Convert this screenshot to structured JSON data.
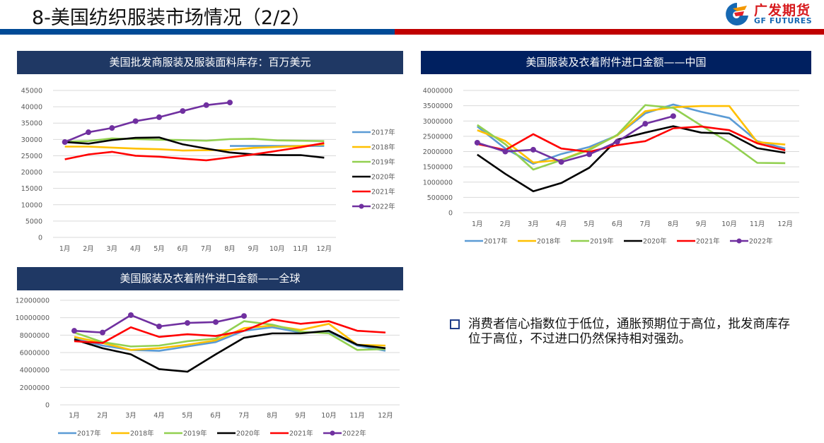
{
  "page": {
    "title": "8-美国纺织服装市场情况（2/2）",
    "logo_cn": "广发期货",
    "logo_en": "GF FUTURES"
  },
  "bullet": {
    "text": "消费者信心指数位于低位，通胀预期位于高位，批发商库存位于高位，不过进口仍然保持相对强劲。"
  },
  "colors": {
    "header_blue": "#004a96",
    "header_red": "#c00000",
    "panel_navy": "#1f3864",
    "panel_navy2": "#002060"
  },
  "chart_data": [
    {
      "id": "wholesale-inventory",
      "type": "line",
      "title": "美国批发商服装及服装面料库存：百万美元",
      "xlabel": "",
      "ylabel": "",
      "categories": [
        "1月",
        "2月",
        "3月",
        "4月",
        "5月",
        "6月",
        "7月",
        "8月",
        "9月",
        "10月",
        "11月",
        "12月"
      ],
      "ylim": [
        0,
        45000
      ],
      "yticks": [
        0,
        5000,
        10000,
        15000,
        20000,
        25000,
        30000,
        35000,
        40000,
        45000
      ],
      "ytick_labels": [
        "0",
        "5000",
        "10000",
        "15000",
        "20000",
        "25000",
        "30000",
        "35000",
        "40000",
        "45000"
      ],
      "grid": true,
      "legend": "right",
      "series": [
        {
          "name": "2017年",
          "color": "#5b9bd5",
          "values": [
            null,
            null,
            null,
            null,
            null,
            null,
            null,
            28000,
            28000,
            28000,
            28000,
            28000
          ]
        },
        {
          "name": "2018年",
          "color": "#ffc000",
          "values": [
            27800,
            27800,
            27500,
            27200,
            27000,
            26600,
            26700,
            26800,
            27400,
            27700,
            28000,
            28500
          ]
        },
        {
          "name": "2019年",
          "color": "#92d050",
          "values": [
            29300,
            29500,
            30300,
            30100,
            29900,
            29800,
            29600,
            30100,
            30200,
            29700,
            29600,
            29500
          ]
        },
        {
          "name": "2020年",
          "color": "#000000",
          "values": [
            29200,
            28700,
            29800,
            30500,
            30600,
            28500,
            27200,
            26000,
            25400,
            25200,
            25200,
            24400
          ]
        },
        {
          "name": "2021年",
          "color": "#ff0000",
          "values": [
            23900,
            25400,
            26200,
            25000,
            24700,
            24100,
            23600,
            24500,
            25400,
            26500,
            27600,
            28900
          ]
        },
        {
          "name": "2022年",
          "color": "#7030a0",
          "marker": true,
          "values": [
            29200,
            32200,
            33500,
            35600,
            36800,
            38700,
            40500,
            41300
          ]
        }
      ]
    },
    {
      "id": "imports-china",
      "type": "line",
      "title": "美国服装及衣着附件进口金额——中国",
      "xlabel": "",
      "ylabel": "",
      "categories": [
        "1月",
        "2月",
        "3月",
        "4月",
        "5月",
        "6月",
        "7月",
        "8月",
        "9月",
        "10月",
        "11月",
        "12月"
      ],
      "ylim": [
        0,
        4000000
      ],
      "yticks": [
        0,
        500000,
        1000000,
        1500000,
        2000000,
        2500000,
        3000000,
        3500000,
        4000000
      ],
      "ytick_labels": [
        "0",
        "500000",
        "1000000",
        "1500000",
        "2000000",
        "2500000",
        "3000000",
        "3500000",
        "4000000"
      ],
      "grid": true,
      "legend": "bottom",
      "series": [
        {
          "name": "2017年",
          "color": "#5b9bd5",
          "values": [
            2820000,
            2100000,
            1600000,
            1920000,
            2150000,
            2530000,
            3250000,
            3540000,
            3300000,
            3100000,
            2340000,
            2100000
          ]
        },
        {
          "name": "2018年",
          "color": "#ffc000",
          "values": [
            2700000,
            2350000,
            1640000,
            1730000,
            2080000,
            2530000,
            3320000,
            3450000,
            3490000,
            3490000,
            2310000,
            2230000
          ]
        },
        {
          "name": "2019年",
          "color": "#92d050",
          "values": [
            2870000,
            2240000,
            1410000,
            1720000,
            2050000,
            2550000,
            3520000,
            3430000,
            2850000,
            2300000,
            1630000,
            1620000
          ]
        },
        {
          "name": "2020年",
          "color": "#000000",
          "values": [
            1900000,
            1270000,
            700000,
            970000,
            1470000,
            2390000,
            2620000,
            2830000,
            2620000,
            2590000,
            2110000,
            1960000
          ]
        },
        {
          "name": "2021年",
          "color": "#ff0000",
          "values": [
            2250000,
            2050000,
            2570000,
            2100000,
            1990000,
            2210000,
            2340000,
            2760000,
            2820000,
            2700000,
            2270000,
            2040000
          ]
        },
        {
          "name": "2022年",
          "color": "#7030a0",
          "marker": true,
          "values": [
            2290000,
            2000000,
            2060000,
            1660000,
            1910000,
            2320000,
            2910000,
            3160000
          ]
        }
      ]
    },
    {
      "id": "imports-global",
      "type": "line",
      "title": "美国服装及衣着附件进口金额——全球",
      "xlabel": "",
      "ylabel": "",
      "categories": [
        "1月",
        "2月",
        "3月",
        "4月",
        "5月",
        "6月",
        "7月",
        "8月",
        "9月",
        "10月",
        "11月",
        "12月"
      ],
      "ylim": [
        0,
        12000000
      ],
      "yticks": [
        0,
        2000000,
        4000000,
        6000000,
        8000000,
        10000000,
        12000000
      ],
      "ytick_labels": [
        "0",
        "2000000",
        "4000000",
        "6000000",
        "8000000",
        "10000000",
        "12000000"
      ],
      "grid": true,
      "legend": "bottom",
      "series": [
        {
          "name": "2017年",
          "color": "#5b9bd5",
          "values": [
            7600000,
            6800000,
            6300000,
            6200000,
            6700000,
            7200000,
            8500000,
            8900000,
            8300000,
            8400000,
            6800000,
            6200000
          ]
        },
        {
          "name": "2018年",
          "color": "#ffc000",
          "values": [
            7800000,
            7100000,
            6300000,
            6500000,
            6900000,
            7400000,
            8800000,
            9100000,
            8600000,
            9300000,
            6900000,
            6800000
          ]
        },
        {
          "name": "2019年",
          "color": "#92d050",
          "values": [
            8300000,
            7200000,
            6700000,
            6800000,
            7300000,
            7600000,
            9600000,
            9200000,
            8400000,
            8200000,
            6300000,
            6400000
          ]
        },
        {
          "name": "2020年",
          "color": "#000000",
          "values": [
            7500000,
            6500000,
            5800000,
            4100000,
            3800000,
            5800000,
            7700000,
            8200000,
            8200000,
            8500000,
            6900000,
            6500000
          ]
        },
        {
          "name": "2021年",
          "color": "#ff0000",
          "values": [
            7300000,
            7100000,
            8900000,
            7800000,
            8100000,
            7900000,
            8500000,
            9800000,
            9300000,
            9600000,
            8500000,
            8300000
          ]
        },
        {
          "name": "2022年",
          "color": "#7030a0",
          "marker": true,
          "values": [
            8500000,
            8300000,
            10300000,
            9000000,
            9400000,
            9500000,
            10200000
          ]
        }
      ]
    }
  ]
}
